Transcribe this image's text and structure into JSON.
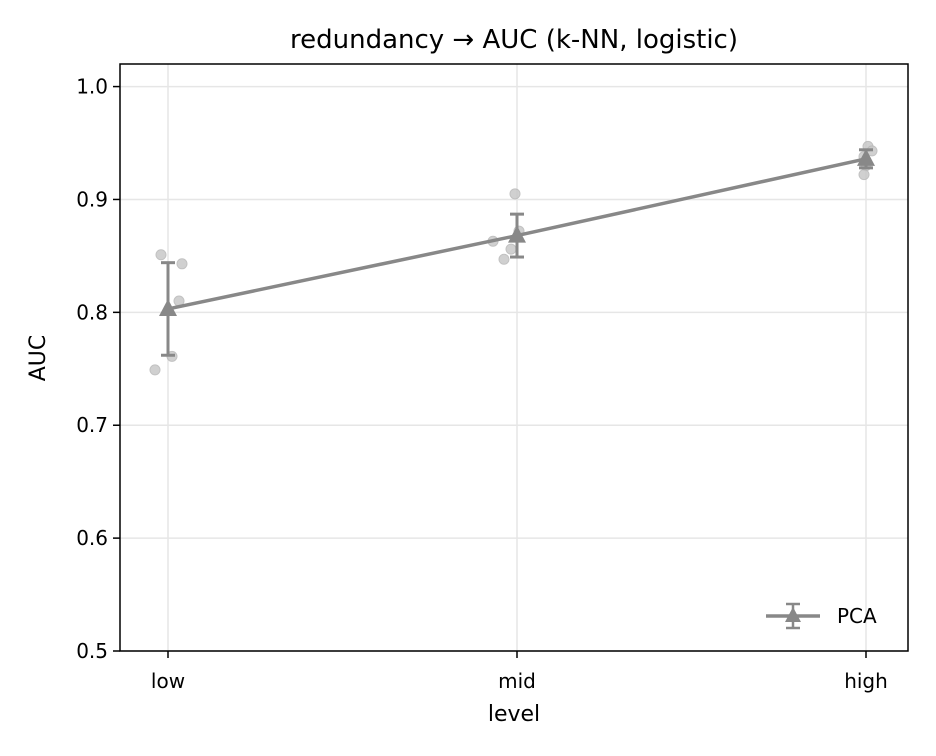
{
  "chart_data": {
    "type": "line",
    "title": "redundancy → AUC (k-NN, logistic)",
    "xlabel": "level",
    "ylabel": "AUC",
    "categories": [
      "low",
      "mid",
      "high"
    ],
    "ylim": [
      0.5,
      1.02
    ],
    "yticks": [
      "0.5",
      "0.6",
      "0.7",
      "0.8",
      "0.9",
      "1.0"
    ],
    "grid": true,
    "legend_position": "lower-right",
    "series": [
      {
        "name": "PCA",
        "color": "#888888",
        "marker": "triangle",
        "values": [
          0.803,
          0.868,
          0.936
        ],
        "error": [
          0.041,
          0.019,
          0.008
        ],
        "points": [
          [
            0.851,
            0.843,
            0.81,
            0.761,
            0.749
          ],
          [
            0.905,
            0.872,
            0.863,
            0.856,
            0.847
          ],
          [
            0.947,
            0.943,
            0.938,
            0.93,
            0.922
          ]
        ]
      }
    ]
  }
}
